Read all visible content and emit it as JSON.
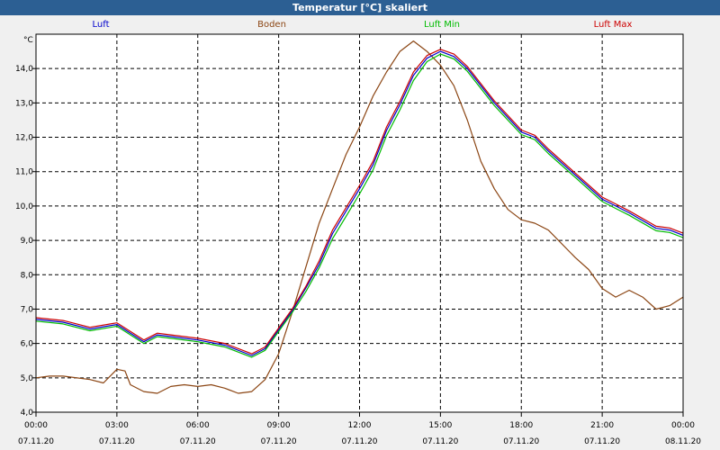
{
  "chart_data": {
    "type": "line",
    "title": "Temperatur [°C] skaliert",
    "ylabel": "°C",
    "ylim": [
      4.0,
      15.0
    ],
    "xlim_hours": [
      0,
      24
    ],
    "grid": true,
    "y_ticks": [
      "4,0",
      "5,0",
      "6,0",
      "7,0",
      "8,0",
      "9,0",
      "10,0",
      "11,0",
      "12,0",
      "13,0",
      "14,0"
    ],
    "x_ticks": [
      {
        "hours": 0,
        "time": "00:00",
        "date": "07.11.20"
      },
      {
        "hours": 3,
        "time": "03:00",
        "date": "07.11.20"
      },
      {
        "hours": 6,
        "time": "06:00",
        "date": "07.11.20"
      },
      {
        "hours": 9,
        "time": "09:00",
        "date": "07.11.20"
      },
      {
        "hours": 12,
        "time": "12:00",
        "date": "07.11.20"
      },
      {
        "hours": 15,
        "time": "15:00",
        "date": "07.11.20"
      },
      {
        "hours": 18,
        "time": "18:00",
        "date": "07.11.20"
      },
      {
        "hours": 21,
        "time": "21:00",
        "date": "07.11.20"
      },
      {
        "hours": 24,
        "time": "00:00",
        "date": "08.11.20"
      }
    ],
    "series": [
      {
        "name": "Luft",
        "color": "#0000cc",
        "points": [
          [
            0,
            6.7
          ],
          [
            1,
            6.62
          ],
          [
            2,
            6.42
          ],
          [
            3,
            6.55
          ],
          [
            4,
            6.05
          ],
          [
            4.5,
            6.25
          ],
          [
            5,
            6.2
          ],
          [
            6,
            6.1
          ],
          [
            7,
            5.95
          ],
          [
            8,
            5.65
          ],
          [
            8.5,
            5.85
          ],
          [
            9,
            6.4
          ],
          [
            9.5,
            6.95
          ],
          [
            10,
            7.6
          ],
          [
            10.5,
            8.3
          ],
          [
            11,
            9.2
          ],
          [
            11.5,
            9.85
          ],
          [
            12,
            10.5
          ],
          [
            12.5,
            11.2
          ],
          [
            13,
            12.2
          ],
          [
            13.5,
            12.95
          ],
          [
            14,
            13.8
          ],
          [
            14.5,
            14.3
          ],
          [
            15,
            14.5
          ],
          [
            15.5,
            14.35
          ],
          [
            16,
            14.0
          ],
          [
            17,
            13.0
          ],
          [
            18,
            12.15
          ],
          [
            18.5,
            12.0
          ],
          [
            19,
            11.6
          ],
          [
            20,
            10.9
          ],
          [
            21,
            10.2
          ],
          [
            21.5,
            10.0
          ],
          [
            22,
            9.8
          ],
          [
            23,
            9.35
          ],
          [
            23.5,
            9.3
          ],
          [
            24,
            9.15
          ]
        ]
      },
      {
        "name": "Boden",
        "color": "#8b4513",
        "points": [
          [
            0,
            5.0
          ],
          [
            0.5,
            5.05
          ],
          [
            1,
            5.05
          ],
          [
            2,
            4.95
          ],
          [
            2.5,
            4.85
          ],
          [
            3,
            5.25
          ],
          [
            3.3,
            5.2
          ],
          [
            3.5,
            4.8
          ],
          [
            4,
            4.6
          ],
          [
            4.5,
            4.55
          ],
          [
            5,
            4.75
          ],
          [
            5.5,
            4.8
          ],
          [
            6,
            4.75
          ],
          [
            6.5,
            4.8
          ],
          [
            7,
            4.7
          ],
          [
            7.5,
            4.55
          ],
          [
            8,
            4.6
          ],
          [
            8.5,
            4.95
          ],
          [
            9,
            5.7
          ],
          [
            9.5,
            6.9
          ],
          [
            10,
            8.2
          ],
          [
            10.5,
            9.5
          ],
          [
            11,
            10.5
          ],
          [
            11.5,
            11.5
          ],
          [
            12,
            12.3
          ],
          [
            12.5,
            13.2
          ],
          [
            13,
            13.9
          ],
          [
            13.5,
            14.5
          ],
          [
            14,
            14.8
          ],
          [
            14.5,
            14.5
          ],
          [
            15,
            14.1
          ],
          [
            15.5,
            13.5
          ],
          [
            16,
            12.5
          ],
          [
            16.5,
            11.3
          ],
          [
            17,
            10.5
          ],
          [
            17.5,
            9.9
          ],
          [
            18,
            9.6
          ],
          [
            18.5,
            9.5
          ],
          [
            19,
            9.3
          ],
          [
            20,
            8.5
          ],
          [
            20.5,
            8.15
          ],
          [
            21,
            7.6
          ],
          [
            21.5,
            7.35
          ],
          [
            22,
            7.55
          ],
          [
            22.5,
            7.35
          ],
          [
            23,
            7.0
          ],
          [
            23.5,
            7.1
          ],
          [
            24,
            7.35
          ]
        ]
      },
      {
        "name": "Luft Min",
        "color": "#00bb00",
        "points": [
          [
            0,
            6.65
          ],
          [
            1,
            6.57
          ],
          [
            2,
            6.37
          ],
          [
            3,
            6.5
          ],
          [
            4,
            6.0
          ],
          [
            4.5,
            6.2
          ],
          [
            5,
            6.15
          ],
          [
            6,
            6.05
          ],
          [
            7,
            5.9
          ],
          [
            8,
            5.6
          ],
          [
            8.5,
            5.8
          ],
          [
            9,
            6.35
          ],
          [
            9.5,
            6.9
          ],
          [
            10,
            7.5
          ],
          [
            10.5,
            8.2
          ],
          [
            11,
            9.05
          ],
          [
            11.5,
            9.7
          ],
          [
            12,
            10.35
          ],
          [
            12.5,
            11.05
          ],
          [
            13,
            12.05
          ],
          [
            13.5,
            12.8
          ],
          [
            14,
            13.65
          ],
          [
            14.5,
            14.2
          ],
          [
            15,
            14.42
          ],
          [
            15.5,
            14.28
          ],
          [
            16,
            13.92
          ],
          [
            17,
            12.92
          ],
          [
            18,
            12.08
          ],
          [
            18.5,
            11.93
          ],
          [
            19,
            11.53
          ],
          [
            20,
            10.83
          ],
          [
            21,
            10.13
          ],
          [
            21.5,
            9.93
          ],
          [
            22,
            9.73
          ],
          [
            23,
            9.28
          ],
          [
            23.5,
            9.23
          ],
          [
            24,
            9.08
          ]
        ]
      },
      {
        "name": "Luft Max",
        "color": "#cc0000",
        "points": [
          [
            0,
            6.75
          ],
          [
            1,
            6.67
          ],
          [
            2,
            6.47
          ],
          [
            3,
            6.6
          ],
          [
            4,
            6.1
          ],
          [
            4.5,
            6.3
          ],
          [
            5,
            6.25
          ],
          [
            6,
            6.15
          ],
          [
            7,
            6.0
          ],
          [
            8,
            5.7
          ],
          [
            8.5,
            5.9
          ],
          [
            9,
            6.45
          ],
          [
            9.5,
            7.0
          ],
          [
            10,
            7.65
          ],
          [
            10.5,
            8.4
          ],
          [
            11,
            9.3
          ],
          [
            11.5,
            9.95
          ],
          [
            12,
            10.6
          ],
          [
            12.5,
            11.3
          ],
          [
            13,
            12.3
          ],
          [
            13.5,
            13.05
          ],
          [
            14,
            13.9
          ],
          [
            14.5,
            14.38
          ],
          [
            15,
            14.56
          ],
          [
            15.5,
            14.42
          ],
          [
            16,
            14.06
          ],
          [
            17,
            13.06
          ],
          [
            18,
            12.21
          ],
          [
            18.5,
            12.06
          ],
          [
            19,
            11.66
          ],
          [
            20,
            10.96
          ],
          [
            21,
            10.26
          ],
          [
            21.5,
            10.06
          ],
          [
            22,
            9.86
          ],
          [
            23,
            9.41
          ],
          [
            23.5,
            9.36
          ],
          [
            24,
            9.21
          ]
        ]
      }
    ]
  }
}
